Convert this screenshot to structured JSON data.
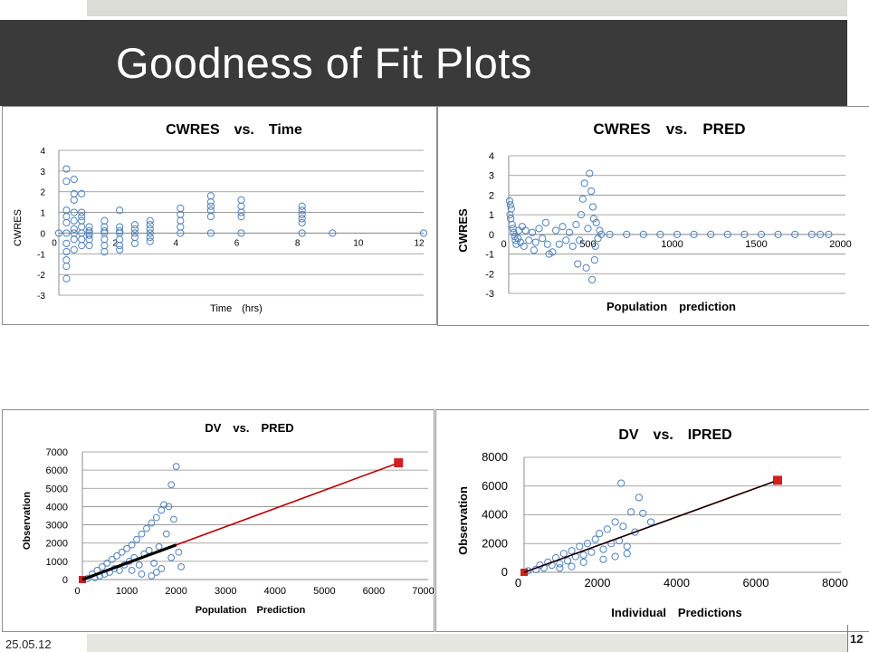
{
  "slide": {
    "title": "Goodness of Fit Plots",
    "date": "25.05.12",
    "page": "12"
  },
  "colors": {
    "marker": "#4f81bd",
    "line_red": "#c00000",
    "line_black": "#000000",
    "square_red": "#d02020",
    "title_bar": "#3a3a3a"
  },
  "chart_data": [
    {
      "type": "scatter",
      "title": "CWRES vs. Time ",
      "xlabel": "Time (hrs) ",
      "ylabel": "CWRES ",
      "xlim": [
        0,
        12
      ],
      "ylim": [
        -3,
        4
      ],
      "xticks": [
        0,
        2,
        4,
        6,
        8,
        10,
        12
      ],
      "xtick_labels": [
        "0 ",
        "2 ",
        "4 ",
        "6 ",
        "8 ",
        "10 ",
        "12 "
      ],
      "yticks": [
        -3,
        -2,
        -1,
        0,
        1,
        2,
        3,
        4
      ],
      "ytick_labels": [
        "-3 ",
        "-2 ",
        "-1 ",
        "0 ",
        "1 ",
        "2 ",
        "3 ",
        "4 "
      ],
      "grid": true,
      "series": [
        {
          "points": [
            [
              0,
              0
            ],
            [
              0.25,
              3.1
            ],
            [
              0.25,
              2.5
            ],
            [
              0.25,
              1.1
            ],
            [
              0.25,
              0.5
            ],
            [
              0.25,
              0
            ],
            [
              0.25,
              -0.5
            ],
            [
              0.25,
              -1.3
            ],
            [
              0.25,
              -1.6
            ],
            [
              0.25,
              -2.2
            ],
            [
              0.25,
              0.8
            ],
            [
              0.25,
              -0.9
            ],
            [
              0.5,
              2.6
            ],
            [
              0.5,
              1.9
            ],
            [
              0.5,
              1.6
            ],
            [
              0.5,
              1
            ],
            [
              0.5,
              0.6
            ],
            [
              0.5,
              0.2
            ],
            [
              0.5,
              -0.3
            ],
            [
              0.5,
              -0.8
            ],
            [
              0.5,
              0
            ],
            [
              0.75,
              1.9
            ],
            [
              0.75,
              1
            ],
            [
              0.75,
              0.6
            ],
            [
              0.75,
              0.3
            ],
            [
              0.75,
              0
            ],
            [
              0.75,
              -0.3
            ],
            [
              0.75,
              -0.6
            ],
            [
              0.75,
              0.8
            ],
            [
              1,
              0.3
            ],
            [
              1,
              0
            ],
            [
              1,
              -0.3
            ],
            [
              1,
              -0.6
            ],
            [
              1,
              0.1
            ],
            [
              1,
              -0.1
            ],
            [
              1.5,
              0.6
            ],
            [
              1.5,
              0.3
            ],
            [
              1.5,
              0
            ],
            [
              1.5,
              -0.3
            ],
            [
              1.5,
              -0.6
            ],
            [
              1.5,
              -0.9
            ],
            [
              1.5,
              0.1
            ],
            [
              2,
              1.1
            ],
            [
              2,
              0.3
            ],
            [
              2,
              0
            ],
            [
              2,
              -0.3
            ],
            [
              2,
              -0.6
            ],
            [
              2,
              -0.8
            ],
            [
              2,
              0.1
            ],
            [
              2.5,
              0.4
            ],
            [
              2.5,
              0.2
            ],
            [
              2.5,
              0
            ],
            [
              2.5,
              -0.2
            ],
            [
              2.5,
              -0.5
            ],
            [
              3,
              0.6
            ],
            [
              3,
              0.4
            ],
            [
              3,
              0.2
            ],
            [
              3,
              0
            ],
            [
              3,
              -0.2
            ],
            [
              3,
              -0.4
            ],
            [
              4,
              1.2
            ],
            [
              4,
              0.9
            ],
            [
              4,
              0.6
            ],
            [
              4,
              0.3
            ],
            [
              4,
              0
            ],
            [
              5,
              1.8
            ],
            [
              5,
              1.5
            ],
            [
              5,
              1.3
            ],
            [
              5,
              1.1
            ],
            [
              5,
              0.8
            ],
            [
              5,
              0
            ],
            [
              6,
              1.6
            ],
            [
              6,
              1.3
            ],
            [
              6,
              1
            ],
            [
              6,
              0.8
            ],
            [
              6,
              0
            ],
            [
              8,
              1.3
            ],
            [
              8,
              1.1
            ],
            [
              8,
              0.9
            ],
            [
              8,
              0.7
            ],
            [
              8,
              0.5
            ],
            [
              8,
              0
            ],
            [
              9,
              0
            ],
            [
              12,
              0
            ]
          ]
        }
      ]
    },
    {
      "type": "scatter",
      "title": "CWRES vs. PRED ",
      "xlabel": "Population prediction ",
      "ylabel": "CWRES ",
      "xlim": [
        0,
        2000
      ],
      "ylim": [
        -3,
        4
      ],
      "xticks": [
        0,
        500,
        1000,
        1500,
        2000
      ],
      "xtick_labels": [
        "0 ",
        "500 ",
        "1000 ",
        "1500 ",
        "2000 "
      ],
      "yticks": [
        -3,
        -2,
        -1,
        0,
        1,
        2,
        3,
        4
      ],
      "ytick_labels": [
        "-3 ",
        "-2 ",
        "-1 ",
        "0 ",
        "1 ",
        "2 ",
        "3 ",
        "4 "
      ],
      "grid": true,
      "series": [
        {
          "points": [
            [
              5,
              1.7
            ],
            [
              10,
              1.5
            ],
            [
              15,
              1.3
            ],
            [
              8,
              1.0
            ],
            [
              12,
              0.8
            ],
            [
              20,
              0.5
            ],
            [
              25,
              0.3
            ],
            [
              30,
              0.1
            ],
            [
              35,
              -0.1
            ],
            [
              40,
              -0.3
            ],
            [
              45,
              -0.5
            ],
            [
              55,
              -0.2
            ],
            [
              60,
              0.2
            ],
            [
              70,
              -0.4
            ],
            [
              80,
              0.4
            ],
            [
              90,
              -0.6
            ],
            [
              100,
              0.2
            ],
            [
              120,
              -0.3
            ],
            [
              140,
              0.1
            ],
            [
              150,
              -0.8
            ],
            [
              160,
              -0.4
            ],
            [
              180,
              0.3
            ],
            [
              200,
              -0.2
            ],
            [
              220,
              0.6
            ],
            [
              230,
              -0.5
            ],
            [
              240,
              -1.0
            ],
            [
              260,
              -0.9
            ],
            [
              280,
              0.2
            ],
            [
              300,
              -0.5
            ],
            [
              320,
              0.4
            ],
            [
              340,
              -0.3
            ],
            [
              360,
              0.1
            ],
            [
              380,
              -0.6
            ],
            [
              400,
              0.5
            ],
            [
              410,
              -1.5
            ],
            [
              420,
              -0.3
            ],
            [
              430,
              1.0
            ],
            [
              440,
              1.8
            ],
            [
              450,
              2.6
            ],
            [
              460,
              -1.7
            ],
            [
              470,
              0.3
            ],
            [
              480,
              3.1
            ],
            [
              490,
              2.2
            ],
            [
              495,
              -2.3
            ],
            [
              500,
              1.4
            ],
            [
              505,
              0.8
            ],
            [
              510,
              -1.3
            ],
            [
              515,
              -0.6
            ],
            [
              520,
              0.6
            ],
            [
              530,
              -0.2
            ],
            [
              540,
              0.2
            ],
            [
              550,
              0
            ],
            [
              600,
              0
            ],
            [
              700,
              0
            ],
            [
              800,
              0
            ],
            [
              900,
              0
            ],
            [
              1000,
              0
            ],
            [
              1100,
              0
            ],
            [
              1200,
              0
            ],
            [
              1300,
              0
            ],
            [
              1400,
              0
            ],
            [
              1500,
              0
            ],
            [
              1600,
              0
            ],
            [
              1700,
              0
            ],
            [
              1800,
              0
            ],
            [
              1850,
              0
            ],
            [
              1900,
              0
            ]
          ]
        }
      ]
    },
    {
      "type": "scatter",
      "title": "DV vs. PRED ",
      "xlabel": "Population Prediction ",
      "ylabel": "Observation ",
      "xlim": [
        0,
        7000
      ],
      "ylim": [
        0,
        7000
      ],
      "xticks": [
        0,
        1000,
        2000,
        3000,
        4000,
        5000,
        6000,
        7000
      ],
      "xtick_labels": [
        "0 ",
        "1000 ",
        "2000 ",
        "3000 ",
        "4000 ",
        "5000 ",
        "6000 ",
        "7000 "
      ],
      "yticks": [
        0,
        1000,
        2000,
        3000,
        4000,
        5000,
        6000,
        7000
      ],
      "ytick_labels": [
        "0 ",
        "1000 ",
        "2000 ",
        "3000 ",
        "4000 ",
        "5000 ",
        "6000 ",
        "7000 "
      ],
      "grid": true,
      "series": [
        {
          "points": [
            [
              100,
              50
            ],
            [
              200,
              300
            ],
            [
              250,
              100
            ],
            [
              300,
              500
            ],
            [
              350,
              200
            ],
            [
              400,
              700
            ],
            [
              450,
              300
            ],
            [
              500,
              900
            ],
            [
              550,
              400
            ],
            [
              600,
              1100
            ],
            [
              650,
              600
            ],
            [
              700,
              1300
            ],
            [
              750,
              500
            ],
            [
              800,
              1500
            ],
            [
              850,
              800
            ],
            [
              900,
              1700
            ],
            [
              950,
              1000
            ],
            [
              1000,
              1900
            ],
            [
              1050,
              1200
            ],
            [
              1100,
              2200
            ],
            [
              1150,
              800
            ],
            [
              1200,
              2500
            ],
            [
              1250,
              1400
            ],
            [
              1300,
              2800
            ],
            [
              1350,
              1600
            ],
            [
              1400,
              3100
            ],
            [
              1450,
              900
            ],
            [
              1500,
              3400
            ],
            [
              1550,
              1800
            ],
            [
              1600,
              3800
            ],
            [
              1650,
              4100
            ],
            [
              1700,
              2500
            ],
            [
              1750,
              4000
            ],
            [
              1800,
              5200
            ],
            [
              1850,
              3300
            ],
            [
              1900,
              6200
            ],
            [
              1950,
              1500
            ],
            [
              2000,
              700
            ],
            [
              1500,
              400
            ],
            [
              1200,
              300
            ],
            [
              1800,
              1200
            ],
            [
              1600,
              600
            ],
            [
              1400,
              200
            ],
            [
              1000,
              500
            ]
          ]
        }
      ],
      "identity_line": {
        "from": [
          0,
          0
        ],
        "to": [
          6400,
          6400
        ]
      },
      "fit_line": {
        "from": [
          0,
          0
        ],
        "to": [
          1900,
          1900
        ]
      }
    },
    {
      "type": "scatter",
      "title": "DV vs. IPRED ",
      "xlabel": "Individual Predictions ",
      "ylabel": "Observation ",
      "xlim": [
        0,
        8000
      ],
      "ylim": [
        0,
        8000
      ],
      "xticks": [
        0,
        2000,
        4000,
        6000,
        8000
      ],
      "xtick_labels": [
        "0 ",
        "2000 ",
        "4000 ",
        "6000 ",
        "8000 "
      ],
      "yticks": [
        0,
        2000,
        4000,
        6000,
        8000
      ],
      "ytick_labels": [
        "0 ",
        "2000 ",
        "4000 ",
        "6000 ",
        "8000 "
      ],
      "grid": true,
      "series": [
        {
          "points": [
            [
              100,
              100
            ],
            [
              300,
              200
            ],
            [
              400,
              500
            ],
            [
              500,
              300
            ],
            [
              600,
              700
            ],
            [
              700,
              500
            ],
            [
              800,
              1000
            ],
            [
              900,
              600
            ],
            [
              1000,
              1300
            ],
            [
              1100,
              800
            ],
            [
              1200,
              1500
            ],
            [
              1300,
              1100
            ],
            [
              1400,
              1800
            ],
            [
              1500,
              1200
            ],
            [
              1600,
              2000
            ],
            [
              1700,
              1400
            ],
            [
              1800,
              2300
            ],
            [
              1900,
              2700
            ],
            [
              2000,
              1600
            ],
            [
              2100,
              3000
            ],
            [
              2200,
              2000
            ],
            [
              2300,
              3500
            ],
            [
              2400,
              2200
            ],
            [
              2500,
              3200
            ],
            [
              2600,
              1800
            ],
            [
              2700,
              4200
            ],
            [
              2800,
              2800
            ],
            [
              2900,
              5200
            ],
            [
              3000,
              4100
            ],
            [
              3200,
              3500
            ],
            [
              2450,
              6200
            ],
            [
              1500,
              700
            ],
            [
              1200,
              400
            ],
            [
              2000,
              900
            ],
            [
              2300,
              1100
            ],
            [
              900,
              300
            ],
            [
              2600,
              1300
            ]
          ]
        }
      ],
      "identity_line": {
        "from": [
          0,
          0
        ],
        "to": [
          6400,
          6400
        ]
      },
      "fit_line": {
        "from": [
          0,
          0
        ],
        "to": [
          6300,
          6300
        ]
      }
    }
  ]
}
